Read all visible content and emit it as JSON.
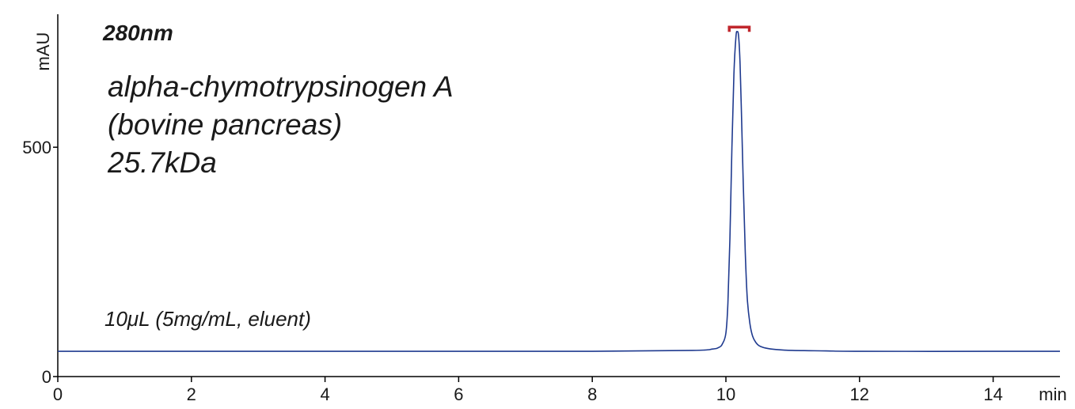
{
  "chart_data": {
    "type": "line",
    "title": "280nm",
    "sample_lines": [
      "alpha-chymotrypsinogen A",
      "(bovine pancreas)",
      "25.7kDa"
    ],
    "injection_note": "10μL (5mg/mL, eluent)",
    "xlabel": "min",
    "ylabel": "mAU",
    "xlim": [
      0,
      15
    ],
    "ylim": [
      0,
      790
    ],
    "x_ticks": [
      0,
      2,
      4,
      6,
      8,
      10,
      12,
      14
    ],
    "x_tick_labels": [
      "0",
      "2",
      "4",
      "6",
      "8",
      "10",
      "12",
      "14"
    ],
    "y_ticks": [
      0,
      500
    ],
    "y_tick_labels": [
      "0",
      "500"
    ],
    "grid": false,
    "colors": {
      "trace": "#1f3a8f",
      "bracket": "#c0272d",
      "axis": "#000000"
    },
    "series": [
      {
        "x": [
          0,
          2,
          4,
          6,
          8,
          9.5,
          9.8,
          9.9,
          9.95,
          10.0,
          10.03,
          10.06,
          10.09,
          10.12,
          10.15,
          10.17,
          10.19,
          10.21,
          10.23,
          10.26,
          10.29,
          10.32,
          10.36,
          10.4,
          10.45,
          10.5,
          10.6,
          10.75,
          11.0,
          11.5,
          12,
          14,
          15
        ],
        "y": [
          55,
          55,
          55,
          55,
          55,
          57,
          60,
          64,
          72,
          95,
          160,
          300,
          500,
          660,
          740,
          752,
          742,
          690,
          590,
          420,
          270,
          170,
          115,
          88,
          74,
          67,
          62,
          59,
          57,
          56,
          55,
          55,
          55
        ]
      }
    ],
    "annotations": [
      {
        "type": "bracket",
        "x_start": 10.05,
        "x_end": 10.35,
        "y": 762
      }
    ]
  }
}
